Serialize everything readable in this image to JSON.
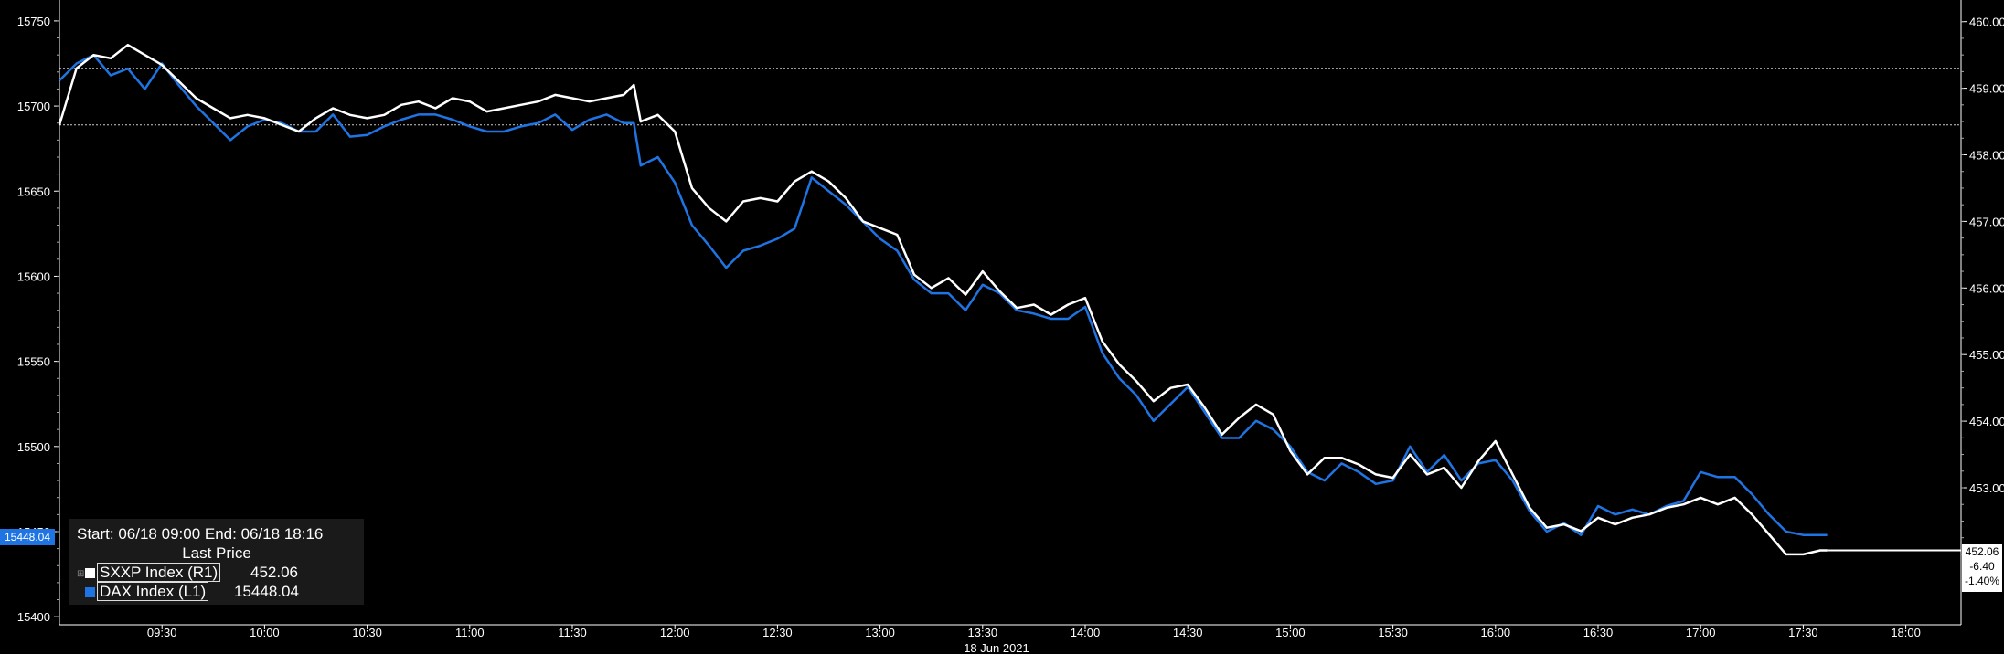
{
  "chart_data": {
    "type": "line",
    "date_label": "18 Jun 2021",
    "x_ticks": [
      "09:30",
      "10:00",
      "10:30",
      "11:00",
      "11:30",
      "12:00",
      "12:30",
      "13:00",
      "13:30",
      "14:00",
      "14:30",
      "15:00",
      "15:30",
      "16:00",
      "16:30",
      "17:00",
      "17:30",
      "18:00"
    ],
    "x_range": [
      "09:00",
      "18:16"
    ],
    "left_axis": {
      "ticks": [
        "15750",
        "15700",
        "15650",
        "15600",
        "15550",
        "15500",
        "15450",
        "15400"
      ],
      "range": [
        15400,
        15750
      ]
    },
    "right_axis": {
      "ticks": [
        "460.00",
        "459.00",
        "458.00",
        "457.00",
        "456.00",
        "455.00",
        "454.00",
        "453.00"
      ],
      "range": [
        451.75,
        460.25
      ]
    },
    "reference_lines_right_axis": [
      459.3,
      458.45
    ],
    "series": [
      {
        "name": "DAX Index (L1)",
        "axis": "left",
        "color": "#1f74e3",
        "points": [
          [
            "09:00",
            15715
          ],
          [
            "09:05",
            15725
          ],
          [
            "09:10",
            15730
          ],
          [
            "09:15",
            15718
          ],
          [
            "09:20",
            15722
          ],
          [
            "09:25",
            15710
          ],
          [
            "09:30",
            15725
          ],
          [
            "09:35",
            15712
          ],
          [
            "09:40",
            15700
          ],
          [
            "09:45",
            15690
          ],
          [
            "09:50",
            15680
          ],
          [
            "09:55",
            15688
          ],
          [
            "10:00",
            15692
          ],
          [
            "10:05",
            15690
          ],
          [
            "10:10",
            15685
          ],
          [
            "10:15",
            15685
          ],
          [
            "10:20",
            15695
          ],
          [
            "10:25",
            15682
          ],
          [
            "10:30",
            15683
          ],
          [
            "10:35",
            15688
          ],
          [
            "10:40",
            15692
          ],
          [
            "10:45",
            15695
          ],
          [
            "10:50",
            15695
          ],
          [
            "10:55",
            15692
          ],
          [
            "11:00",
            15688
          ],
          [
            "11:05",
            15685
          ],
          [
            "11:10",
            15685
          ],
          [
            "11:15",
            15688
          ],
          [
            "11:20",
            15690
          ],
          [
            "11:25",
            15695
          ],
          [
            "11:30",
            15686
          ],
          [
            "11:35",
            15692
          ],
          [
            "11:40",
            15695
          ],
          [
            "11:45",
            15690
          ],
          [
            "11:48",
            15690
          ],
          [
            "11:50",
            15665
          ],
          [
            "11:55",
            15670
          ],
          [
            "12:00",
            15655
          ],
          [
            "12:05",
            15630
          ],
          [
            "12:10",
            15618
          ],
          [
            "12:15",
            15605
          ],
          [
            "12:20",
            15615
          ],
          [
            "12:25",
            15618
          ],
          [
            "12:30",
            15622
          ],
          [
            "12:35",
            15628
          ],
          [
            "12:40",
            15658
          ],
          [
            "12:45",
            15650
          ],
          [
            "12:50",
            15642
          ],
          [
            "12:55",
            15632
          ],
          [
            "13:00",
            15622
          ],
          [
            "13:05",
            15615
          ],
          [
            "13:10",
            15598
          ],
          [
            "13:15",
            15590
          ],
          [
            "13:20",
            15590
          ],
          [
            "13:25",
            15580
          ],
          [
            "13:30",
            15595
          ],
          [
            "13:35",
            15590
          ],
          [
            "13:40",
            15580
          ],
          [
            "13:45",
            15578
          ],
          [
            "13:50",
            15575
          ],
          [
            "13:55",
            15575
          ],
          [
            "14:00",
            15582
          ],
          [
            "14:05",
            15555
          ],
          [
            "14:10",
            15540
          ],
          [
            "14:15",
            15530
          ],
          [
            "14:20",
            15515
          ],
          [
            "14:25",
            15525
          ],
          [
            "14:30",
            15535
          ],
          [
            "14:35",
            15520
          ],
          [
            "14:40",
            15505
          ],
          [
            "14:45",
            15505
          ],
          [
            "14:50",
            15515
          ],
          [
            "14:55",
            15510
          ],
          [
            "15:00",
            15500
          ],
          [
            "15:05",
            15485
          ],
          [
            "15:10",
            15480
          ],
          [
            "15:15",
            15490
          ],
          [
            "15:20",
            15485
          ],
          [
            "15:25",
            15478
          ],
          [
            "15:30",
            15480
          ],
          [
            "15:35",
            15500
          ],
          [
            "15:40",
            15485
          ],
          [
            "15:45",
            15495
          ],
          [
            "15:50",
            15480
          ],
          [
            "15:55",
            15490
          ],
          [
            "16:00",
            15492
          ],
          [
            "16:05",
            15480
          ],
          [
            "16:10",
            15462
          ],
          [
            "16:15",
            15450
          ],
          [
            "16:20",
            15455
          ],
          [
            "16:25",
            15448
          ],
          [
            "16:30",
            15465
          ],
          [
            "16:35",
            15460
          ],
          [
            "16:40",
            15463
          ],
          [
            "16:45",
            15460
          ],
          [
            "16:50",
            15465
          ],
          [
            "16:55",
            15468
          ],
          [
            "17:00",
            15485
          ],
          [
            "17:05",
            15482
          ],
          [
            "17:10",
            15482
          ],
          [
            "17:15",
            15472
          ],
          [
            "17:20",
            15460
          ],
          [
            "17:25",
            15450
          ],
          [
            "17:30",
            15448
          ],
          [
            "17:35",
            15448
          ],
          [
            "17:37",
            15448
          ]
        ]
      },
      {
        "name": "SXXP Index (R1)",
        "axis": "right",
        "color": "#ffffff",
        "points": [
          [
            "09:00",
            458.45
          ],
          [
            "09:05",
            459.3
          ],
          [
            "09:10",
            459.5
          ],
          [
            "09:15",
            459.45
          ],
          [
            "09:20",
            459.65
          ],
          [
            "09:25",
            459.5
          ],
          [
            "09:30",
            459.35
          ],
          [
            "09:35",
            459.1
          ],
          [
            "09:40",
            458.85
          ],
          [
            "09:45",
            458.7
          ],
          [
            "09:50",
            458.55
          ],
          [
            "09:55",
            458.6
          ],
          [
            "10:00",
            458.55
          ],
          [
            "10:05",
            458.45
          ],
          [
            "10:10",
            458.35
          ],
          [
            "10:15",
            458.55
          ],
          [
            "10:20",
            458.7
          ],
          [
            "10:25",
            458.6
          ],
          [
            "10:30",
            458.55
          ],
          [
            "10:35",
            458.6
          ],
          [
            "10:40",
            458.75
          ],
          [
            "10:45",
            458.8
          ],
          [
            "10:50",
            458.7
          ],
          [
            "10:55",
            458.85
          ],
          [
            "11:00",
            458.8
          ],
          [
            "11:05",
            458.65
          ],
          [
            "11:10",
            458.7
          ],
          [
            "11:15",
            458.75
          ],
          [
            "11:20",
            458.8
          ],
          [
            "11:25",
            458.9
          ],
          [
            "11:30",
            458.85
          ],
          [
            "11:35",
            458.8
          ],
          [
            "11:40",
            458.85
          ],
          [
            "11:45",
            458.9
          ],
          [
            "11:48",
            459.05
          ],
          [
            "11:50",
            458.5
          ],
          [
            "11:55",
            458.6
          ],
          [
            "12:00",
            458.35
          ],
          [
            "12:05",
            457.5
          ],
          [
            "12:10",
            457.2
          ],
          [
            "12:15",
            457.0
          ],
          [
            "12:20",
            457.3
          ],
          [
            "12:25",
            457.35
          ],
          [
            "12:30",
            457.3
          ],
          [
            "12:35",
            457.6
          ],
          [
            "12:40",
            457.75
          ],
          [
            "12:45",
            457.6
          ],
          [
            "12:50",
            457.35
          ],
          [
            "12:55",
            457.0
          ],
          [
            "13:00",
            456.9
          ],
          [
            "13:05",
            456.8
          ],
          [
            "13:10",
            456.2
          ],
          [
            "13:15",
            456.0
          ],
          [
            "13:20",
            456.15
          ],
          [
            "13:25",
            455.9
          ],
          [
            "13:30",
            456.25
          ],
          [
            "13:35",
            455.95
          ],
          [
            "13:40",
            455.7
          ],
          [
            "13:45",
            455.75
          ],
          [
            "13:50",
            455.6
          ],
          [
            "13:55",
            455.75
          ],
          [
            "14:00",
            455.85
          ],
          [
            "14:05",
            455.2
          ],
          [
            "14:10",
            454.85
          ],
          [
            "14:15",
            454.6
          ],
          [
            "14:20",
            454.3
          ],
          [
            "14:25",
            454.5
          ],
          [
            "14:30",
            454.55
          ],
          [
            "14:35",
            454.2
          ],
          [
            "14:40",
            453.8
          ],
          [
            "14:45",
            454.05
          ],
          [
            "14:50",
            454.25
          ],
          [
            "14:55",
            454.1
          ],
          [
            "15:00",
            453.55
          ],
          [
            "15:05",
            453.2
          ],
          [
            "15:10",
            453.45
          ],
          [
            "15:15",
            453.45
          ],
          [
            "15:20",
            453.35
          ],
          [
            "15:25",
            453.2
          ],
          [
            "15:30",
            453.15
          ],
          [
            "15:35",
            453.5
          ],
          [
            "15:40",
            453.2
          ],
          [
            "15:45",
            453.3
          ],
          [
            "15:50",
            453.0
          ],
          [
            "15:55",
            453.4
          ],
          [
            "16:00",
            453.7
          ],
          [
            "16:05",
            453.2
          ],
          [
            "16:10",
            452.7
          ],
          [
            "16:15",
            452.4
          ],
          [
            "16:20",
            452.45
          ],
          [
            "16:25",
            452.35
          ],
          [
            "16:30",
            452.55
          ],
          [
            "16:35",
            452.45
          ],
          [
            "16:40",
            452.55
          ],
          [
            "16:45",
            452.6
          ],
          [
            "16:50",
            452.7
          ],
          [
            "16:55",
            452.75
          ],
          [
            "17:00",
            452.85
          ],
          [
            "17:05",
            452.75
          ],
          [
            "17:10",
            452.85
          ],
          [
            "17:15",
            452.6
          ],
          [
            "17:20",
            452.3
          ],
          [
            "17:25",
            452.0
          ],
          [
            "17:30",
            452.0
          ],
          [
            "17:35",
            452.06
          ],
          [
            "17:37",
            452.06
          ]
        ]
      }
    ],
    "left_last_tag": "15448.04",
    "right_last_tag": [
      "452.06",
      "-6.40",
      "-1.40%"
    ]
  },
  "legend": {
    "range_text": "Start: 06/18 09:00 End: 06/18 18:16",
    "header": "Last Price",
    "rows": [
      {
        "name": "SXXP Index  (R1)",
        "value": "452.06",
        "color": "#ffffff"
      },
      {
        "name": "DAX Index  (L1)",
        "value": "15448.04",
        "color": "#1f74e3"
      }
    ]
  }
}
